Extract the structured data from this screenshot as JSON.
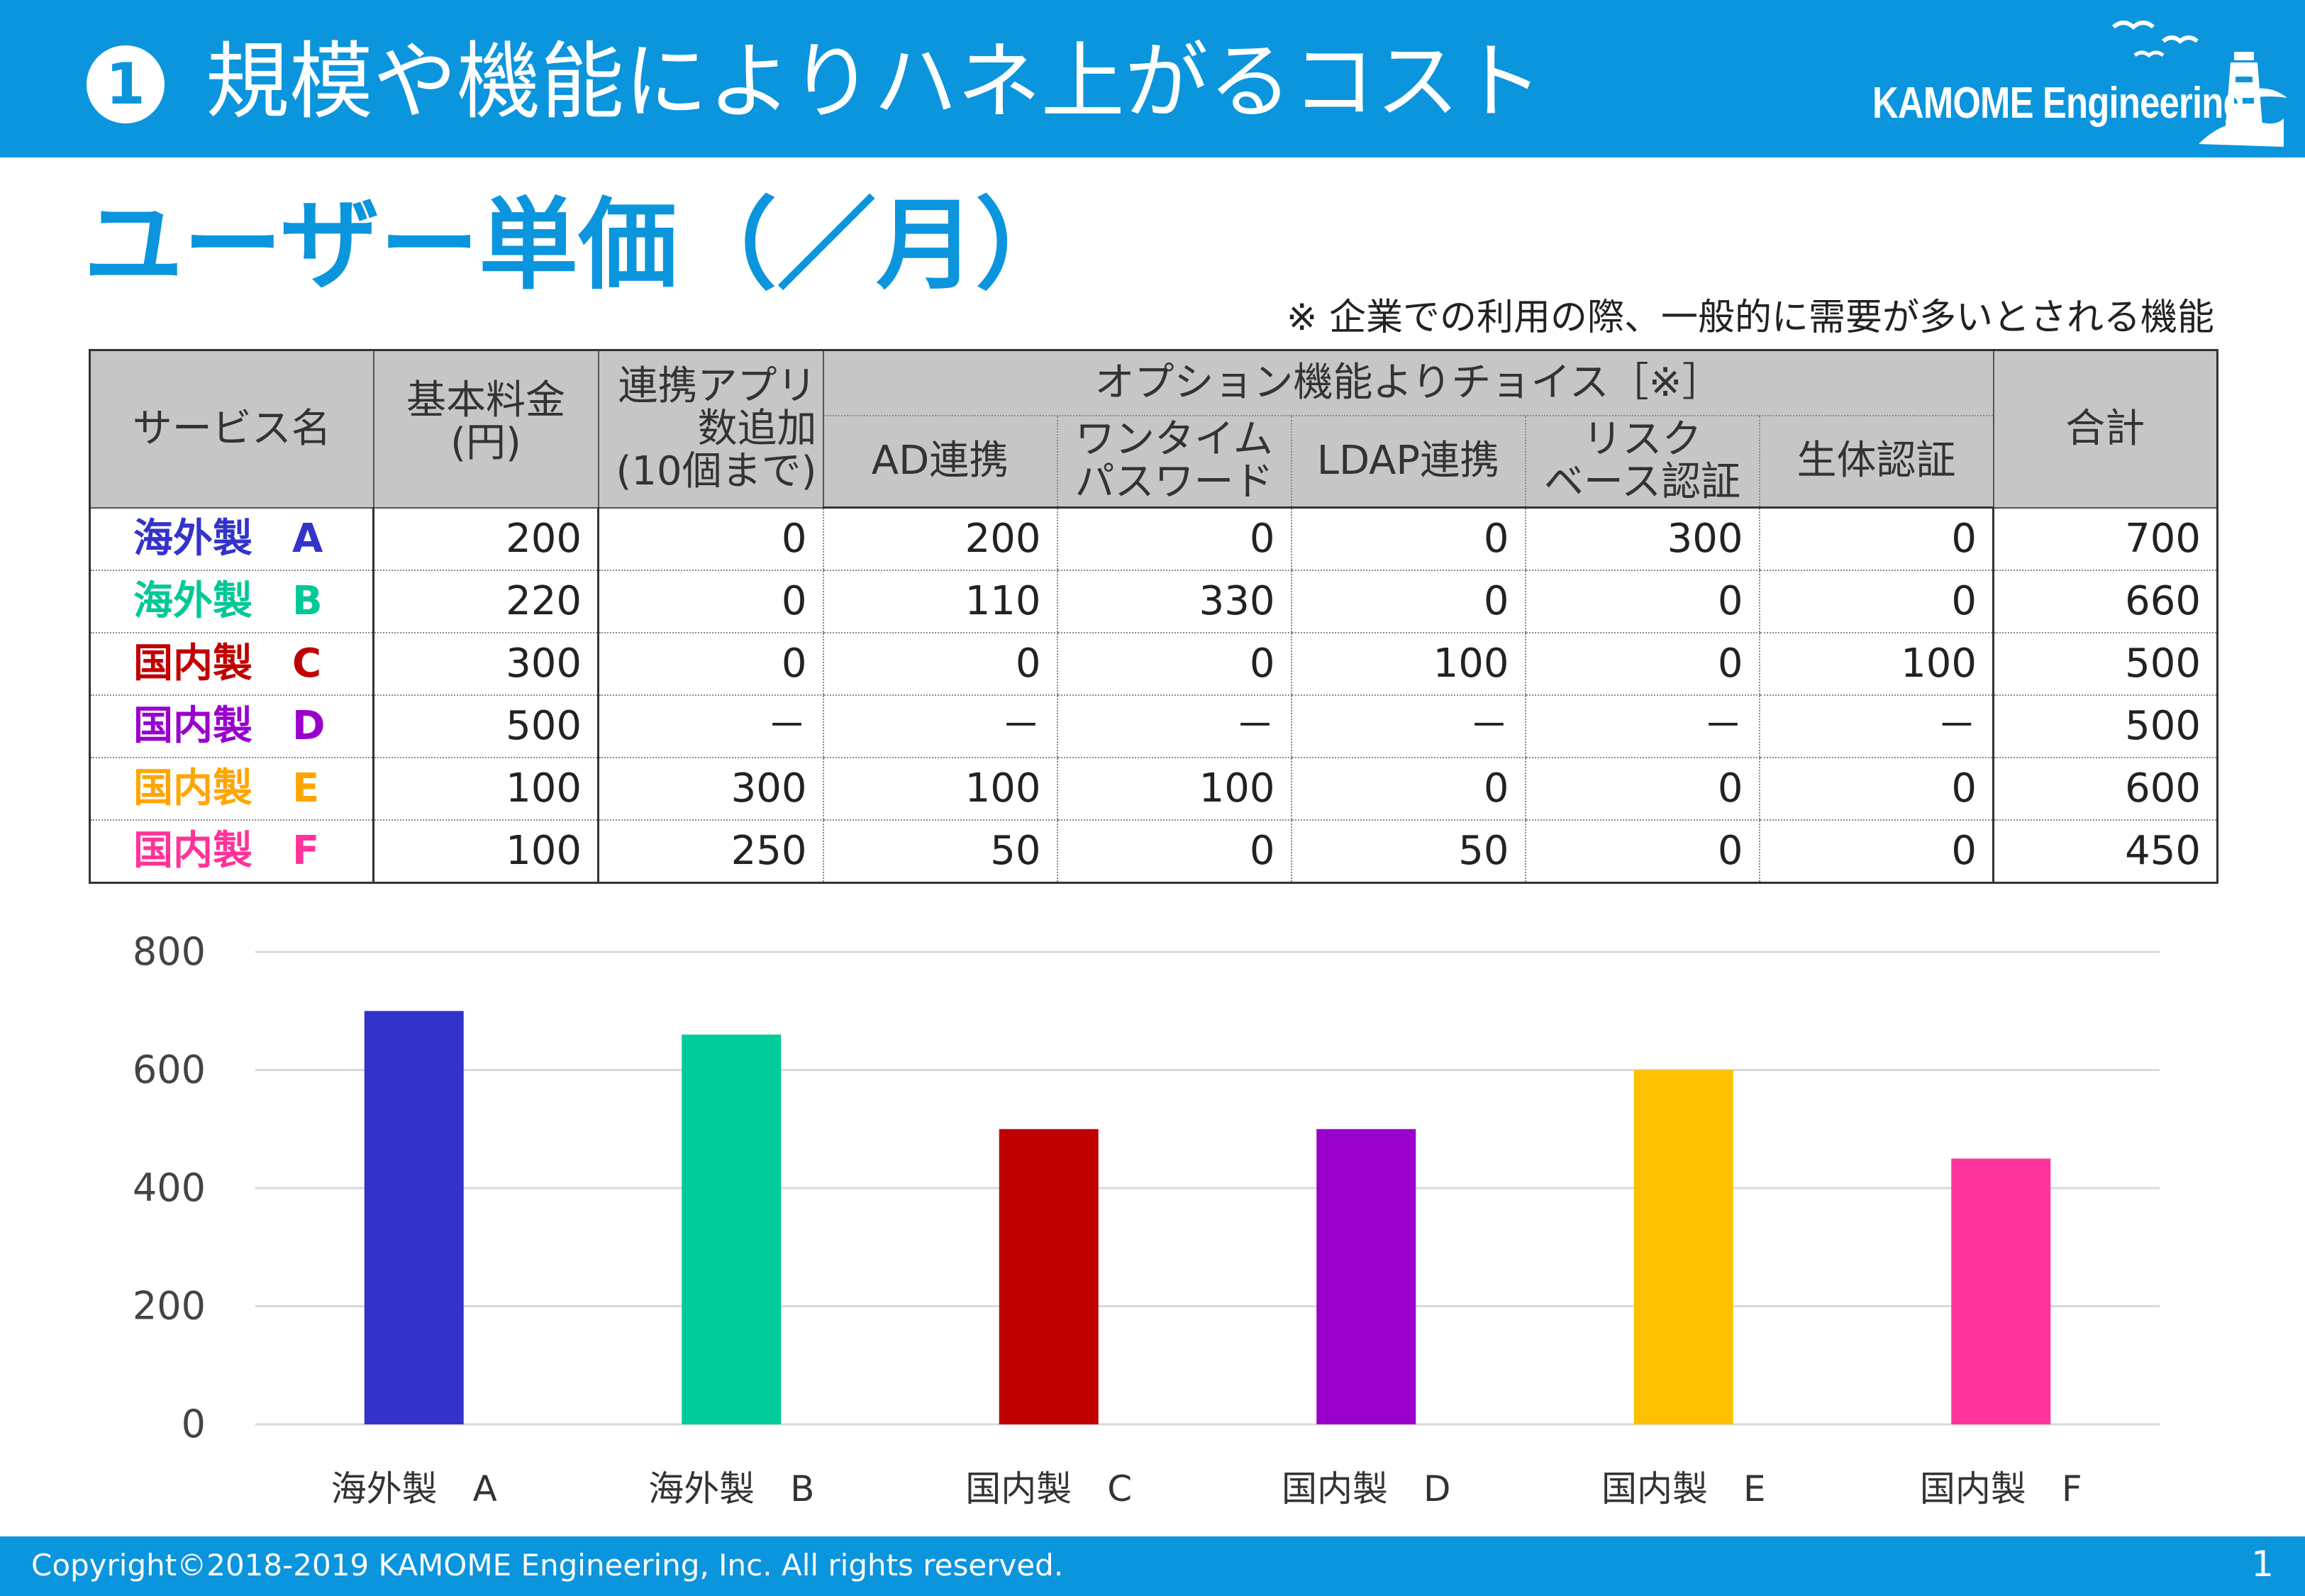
{
  "header": {
    "number": "1",
    "title": "規模や機能によりハネ上がるコスト",
    "logo_text": "KAMOME Engineering"
  },
  "section_title": "ユーザー単価（／月）",
  "note": "※ 企業での利用の際、一般的に需要が多いとされる機能",
  "table": {
    "headers": {
      "service": "サービス名",
      "base_fee": "基本料金\n(円)",
      "app_add": "連携アプリ\n数追加\n(10個まで)",
      "options_group": "オプション機能よりチョイス［※］",
      "ad": "AD連携",
      "otp": "ワンタイム\nパスワード",
      "ldap": "LDAP連携",
      "risk": "リスク\nベース認証",
      "bio": "生体認証",
      "total": "合計"
    },
    "rows": [
      {
        "name": "海外製　A",
        "color": "#3333cc",
        "base": "200",
        "app": "0",
        "ad": "200",
        "otp": "0",
        "ldap": "0",
        "risk": "300",
        "bio": "0",
        "total": "700"
      },
      {
        "name": "海外製　B",
        "color": "#00c896",
        "base": "220",
        "app": "0",
        "ad": "110",
        "otp": "330",
        "ldap": "0",
        "risk": "0",
        "bio": "0",
        "total": "660"
      },
      {
        "name": "国内製　C",
        "color": "#c00000",
        "base": "300",
        "app": "0",
        "ad": "0",
        "otp": "0",
        "ldap": "100",
        "risk": "0",
        "bio": "100",
        "total": "500"
      },
      {
        "name": "国内製　D",
        "color": "#9900cc",
        "base": "500",
        "app": "－",
        "ad": "－",
        "otp": "－",
        "ldap": "－",
        "risk": "－",
        "bio": "－",
        "total": "500"
      },
      {
        "name": "国内製　E",
        "color": "#ffa500",
        "base": "100",
        "app": "300",
        "ad": "100",
        "otp": "100",
        "ldap": "0",
        "risk": "0",
        "bio": "0",
        "total": "600"
      },
      {
        "name": "国内製　F",
        "color": "#ff3399",
        "base": "100",
        "app": "250",
        "ad": "50",
        "otp": "0",
        "ldap": "50",
        "risk": "0",
        "bio": "0",
        "total": "450"
      }
    ]
  },
  "chart_data": {
    "type": "bar",
    "categories": [
      "海外製　A",
      "海外製　B",
      "国内製　C",
      "国内製　D",
      "国内製　E",
      "国内製　F"
    ],
    "values": [
      700,
      660,
      500,
      500,
      600,
      450
    ],
    "colors": [
      "#3333cc",
      "#00cc99",
      "#c00000",
      "#9900cc",
      "#ffc000",
      "#ff3399"
    ],
    "title": "",
    "xlabel": "",
    "ylabel": "",
    "ylim": [
      0,
      800
    ],
    "yticks": [
      "0",
      "200",
      "400",
      "600",
      "800"
    ],
    "grid": true,
    "legend": "none"
  },
  "footer": {
    "copyright": "Copyright©2018-2019 KAMOME Engineering, Inc. All rights reserved.",
    "page": "1"
  }
}
